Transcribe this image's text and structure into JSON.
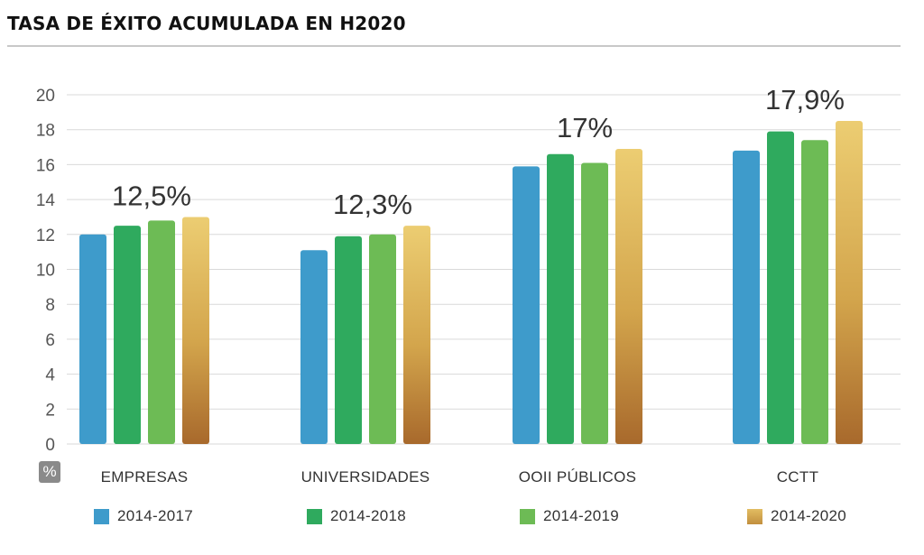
{
  "title": "TASA DE ÉXITO ACUMULADA EN H2020",
  "unit_label": "%",
  "chart_data": {
    "type": "bar",
    "title": "TASA DE ÉXITO ACUMULADA EN H2020",
    "ylabel": "%",
    "ylim": [
      0,
      20
    ],
    "yticks": [
      0,
      2,
      4,
      6,
      8,
      10,
      12,
      14,
      16,
      18,
      20
    ],
    "grid": true,
    "legend_position": "bottom",
    "categories": [
      "EMPRESAS",
      "UNIVERSIDADES",
      "OOII PÚBLICOS",
      "CCTT"
    ],
    "series": [
      {
        "name": "2014-2017",
        "color": "#3e9bcb",
        "values": [
          12.0,
          11.1,
          15.9,
          16.8
        ]
      },
      {
        "name": "2014-2018",
        "color": "#2faa5e",
        "values": [
          12.5,
          11.9,
          16.6,
          17.9
        ]
      },
      {
        "name": "2014-2019",
        "color": "#6dbb55",
        "values": [
          12.8,
          12.0,
          16.1,
          17.4
        ]
      },
      {
        "name": "2014-2020",
        "color": "#d3a54c",
        "values": [
          13.0,
          12.5,
          16.9,
          18.5
        ]
      }
    ],
    "annotations": [
      "12,5%",
      "12,3%",
      "17%",
      "17,9%"
    ]
  }
}
